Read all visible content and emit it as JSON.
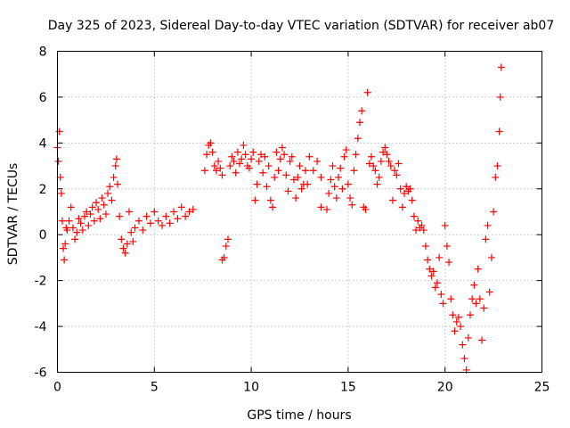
{
  "chart_data": {
    "type": "scatter",
    "title": "Day 325 of 2023, Sidereal Day-to-day VTEC variation (SDTVAR) for receiver ab07",
    "xlabel": "GPS time / hours",
    "ylabel": "SDTVAR / TECUs",
    "xlim": [
      0,
      25
    ],
    "ylim": [
      -6,
      8
    ],
    "xticks": [
      0,
      5,
      10,
      15,
      20,
      25
    ],
    "yticks": [
      -6,
      -4,
      -2,
      0,
      2,
      4,
      6,
      8
    ],
    "grid": true,
    "marker": "+",
    "marker_color": "#ff0000",
    "series": [
      {
        "name": "SDTVAR",
        "points": [
          [
            0.0,
            3.8
          ],
          [
            0.05,
            3.2
          ],
          [
            0.1,
            4.5
          ],
          [
            0.15,
            2.5
          ],
          [
            0.2,
            1.8
          ],
          [
            0.25,
            0.6
          ],
          [
            0.3,
            -0.6
          ],
          [
            0.35,
            -1.1
          ],
          [
            0.4,
            -0.4
          ],
          [
            0.45,
            0.3
          ],
          [
            0.5,
            0.2
          ],
          [
            0.6,
            0.6
          ],
          [
            0.7,
            1.2
          ],
          [
            0.8,
            0.3
          ],
          [
            0.9,
            -0.2
          ],
          [
            1.0,
            0.1
          ],
          [
            1.1,
            0.7
          ],
          [
            1.2,
            0.5
          ],
          [
            1.3,
            0.2
          ],
          [
            1.4,
            0.8
          ],
          [
            1.5,
            1.0
          ],
          [
            1.6,
            0.4
          ],
          [
            1.7,
            0.9
          ],
          [
            1.8,
            1.2
          ],
          [
            1.9,
            0.6
          ],
          [
            2.0,
            1.4
          ],
          [
            2.1,
            1.1
          ],
          [
            2.2,
            0.7
          ],
          [
            2.3,
            1.6
          ],
          [
            2.4,
            1.3
          ],
          [
            2.5,
            0.9
          ],
          [
            2.6,
            1.8
          ],
          [
            2.7,
            2.1
          ],
          [
            2.8,
            1.5
          ],
          [
            2.9,
            2.5
          ],
          [
            3.0,
            3.0
          ],
          [
            3.05,
            3.3
          ],
          [
            3.1,
            2.2
          ],
          [
            3.2,
            0.8
          ],
          [
            3.3,
            -0.2
          ],
          [
            3.4,
            -0.6
          ],
          [
            3.5,
            -0.8
          ],
          [
            3.6,
            -0.4
          ],
          [
            3.7,
            1.0
          ],
          [
            3.8,
            0.1
          ],
          [
            3.9,
            -0.3
          ],
          [
            4.0,
            0.3
          ],
          [
            4.2,
            0.6
          ],
          [
            4.4,
            0.2
          ],
          [
            4.6,
            0.8
          ],
          [
            4.8,
            0.5
          ],
          [
            5.0,
            1.0
          ],
          [
            5.2,
            0.6
          ],
          [
            5.4,
            0.4
          ],
          [
            5.6,
            0.8
          ],
          [
            5.8,
            0.5
          ],
          [
            6.0,
            1.0
          ],
          [
            6.2,
            0.7
          ],
          [
            6.4,
            1.2
          ],
          [
            6.6,
            0.8
          ],
          [
            6.8,
            1.0
          ],
          [
            7.0,
            1.1
          ],
          [
            7.6,
            2.8
          ],
          [
            7.7,
            3.5
          ],
          [
            7.8,
            3.9
          ],
          [
            7.9,
            4.0
          ],
          [
            8.0,
            3.6
          ],
          [
            8.1,
            3.0
          ],
          [
            8.2,
            2.8
          ],
          [
            8.3,
            3.2
          ],
          [
            8.4,
            2.9
          ],
          [
            8.5,
            2.6
          ],
          [
            8.5,
            -1.1
          ],
          [
            8.6,
            -1.0
          ],
          [
            8.7,
            -0.5
          ],
          [
            8.8,
            -0.2
          ],
          [
            8.9,
            3.0
          ],
          [
            9.0,
            3.4
          ],
          [
            9.1,
            3.2
          ],
          [
            9.2,
            2.7
          ],
          [
            9.3,
            3.6
          ],
          [
            9.4,
            3.1
          ],
          [
            9.5,
            3.3
          ],
          [
            9.6,
            3.9
          ],
          [
            9.7,
            3.5
          ],
          [
            9.8,
            3.0
          ],
          [
            9.9,
            2.9
          ],
          [
            10.0,
            3.3
          ],
          [
            10.1,
            3.6
          ],
          [
            10.2,
            1.5
          ],
          [
            10.3,
            2.2
          ],
          [
            10.4,
            3.2
          ],
          [
            10.5,
            3.5
          ],
          [
            10.6,
            2.7
          ],
          [
            10.7,
            3.4
          ],
          [
            10.8,
            2.1
          ],
          [
            10.9,
            3.0
          ],
          [
            11.0,
            1.5
          ],
          [
            11.1,
            1.2
          ],
          [
            11.2,
            2.5
          ],
          [
            11.3,
            3.6
          ],
          [
            11.4,
            2.8
          ],
          [
            11.5,
            3.3
          ],
          [
            11.6,
            3.8
          ],
          [
            11.7,
            3.5
          ],
          [
            11.8,
            2.6
          ],
          [
            11.9,
            1.9
          ],
          [
            12.0,
            3.2
          ],
          [
            12.1,
            3.4
          ],
          [
            12.2,
            2.4
          ],
          [
            12.3,
            1.6
          ],
          [
            12.4,
            2.5
          ],
          [
            12.5,
            3.0
          ],
          [
            12.6,
            2.0
          ],
          [
            12.7,
            2.2
          ],
          [
            12.8,
            2.8
          ],
          [
            12.9,
            2.2
          ],
          [
            13.0,
            3.4
          ],
          [
            13.2,
            2.8
          ],
          [
            13.4,
            3.2
          ],
          [
            13.6,
            2.5
          ],
          [
            13.6,
            1.2
          ],
          [
            13.9,
            1.1
          ],
          [
            14.0,
            1.8
          ],
          [
            14.1,
            2.4
          ],
          [
            14.2,
            3.0
          ],
          [
            14.3,
            2.1
          ],
          [
            14.4,
            1.6
          ],
          [
            14.5,
            2.5
          ],
          [
            14.6,
            2.9
          ],
          [
            14.7,
            2.0
          ],
          [
            14.8,
            3.4
          ],
          [
            14.9,
            3.7
          ],
          [
            15.0,
            2.2
          ],
          [
            15.1,
            1.6
          ],
          [
            15.2,
            1.3
          ],
          [
            15.3,
            2.8
          ],
          [
            15.4,
            3.5
          ],
          [
            15.5,
            4.2
          ],
          [
            15.6,
            4.9
          ],
          [
            15.7,
            5.4
          ],
          [
            15.8,
            1.2
          ],
          [
            15.9,
            1.1
          ],
          [
            16.0,
            6.2
          ],
          [
            16.1,
            3.1
          ],
          [
            16.2,
            3.4
          ],
          [
            16.3,
            3.0
          ],
          [
            16.4,
            2.8
          ],
          [
            16.5,
            2.2
          ],
          [
            16.6,
            2.5
          ],
          [
            16.7,
            3.2
          ],
          [
            16.8,
            3.6
          ],
          [
            16.9,
            3.8
          ],
          [
            17.0,
            3.5
          ],
          [
            17.1,
            3.2
          ],
          [
            17.2,
            3.0
          ],
          [
            17.3,
            1.5
          ],
          [
            17.4,
            2.8
          ],
          [
            17.5,
            2.6
          ],
          [
            17.6,
            3.1
          ],
          [
            17.7,
            2.0
          ],
          [
            17.8,
            1.2
          ],
          [
            17.9,
            1.8
          ],
          [
            18.0,
            2.1
          ],
          [
            18.1,
            1.9
          ],
          [
            18.2,
            2.0
          ],
          [
            18.3,
            1.5
          ],
          [
            18.4,
            0.8
          ],
          [
            18.5,
            0.2
          ],
          [
            18.6,
            0.6
          ],
          [
            18.7,
            0.3
          ],
          [
            18.8,
            0.4
          ],
          [
            18.9,
            0.2
          ],
          [
            19.0,
            -0.5
          ],
          [
            19.1,
            -1.1
          ],
          [
            19.2,
            -1.5
          ],
          [
            19.3,
            -1.8
          ],
          [
            19.4,
            -1.6
          ],
          [
            19.5,
            -2.3
          ],
          [
            19.6,
            -2.1
          ],
          [
            19.7,
            -1.0
          ],
          [
            19.8,
            -2.6
          ],
          [
            19.9,
            -3.0
          ],
          [
            20.0,
            0.4
          ],
          [
            20.1,
            -0.5
          ],
          [
            20.2,
            -1.2
          ],
          [
            20.3,
            -2.8
          ],
          [
            20.4,
            -3.5
          ],
          [
            20.5,
            -4.2
          ],
          [
            20.6,
            -3.8
          ],
          [
            20.7,
            -3.6
          ],
          [
            20.8,
            -4.0
          ],
          [
            20.9,
            -4.8
          ],
          [
            21.0,
            -5.4
          ],
          [
            21.1,
            -5.9
          ],
          [
            21.2,
            -4.5
          ],
          [
            21.3,
            -3.5
          ],
          [
            21.4,
            -2.8
          ],
          [
            21.5,
            -2.2
          ],
          [
            21.6,
            -3.0
          ],
          [
            21.7,
            -1.5
          ],
          [
            21.8,
            -2.8
          ],
          [
            21.9,
            -4.6
          ],
          [
            22.0,
            -3.2
          ],
          [
            22.1,
            -0.2
          ],
          [
            22.2,
            0.4
          ],
          [
            22.3,
            -2.5
          ],
          [
            22.4,
            -1.0
          ],
          [
            22.5,
            1.0
          ],
          [
            22.6,
            2.5
          ],
          [
            22.7,
            3.0
          ],
          [
            22.8,
            4.5
          ],
          [
            22.85,
            6.0
          ],
          [
            22.9,
            7.3
          ]
        ]
      }
    ]
  }
}
